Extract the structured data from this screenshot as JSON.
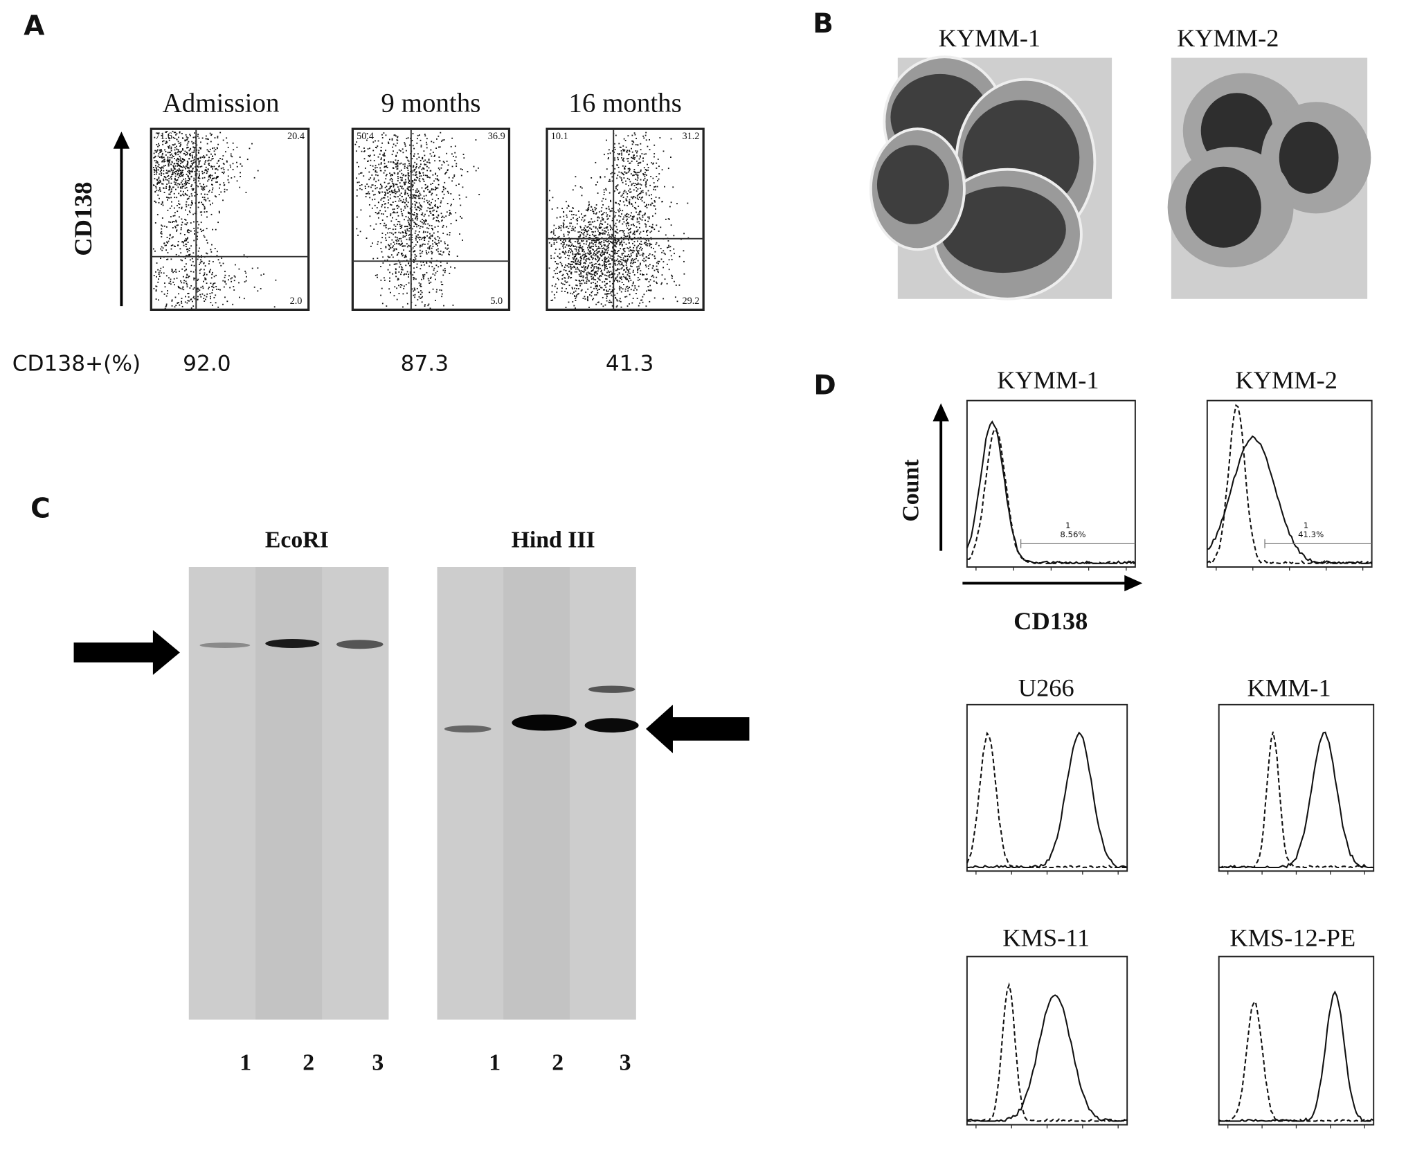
{
  "panel_a": {
    "label": "A",
    "y_axis_label": "CD138",
    "row_label": "CD138+(%)",
    "plots": [
      {
        "title": "Admission",
        "quadrants": [
          "71.6",
          "20.4",
          "2.0"
        ],
        "percent": "92.0"
      },
      {
        "title": "9 months",
        "quadrants": [
          "50.4",
          "36.9",
          "5.0"
        ],
        "percent": "87.3"
      },
      {
        "title": "16 months",
        "quadrants": [
          "10.1",
          "31.2",
          "29.2"
        ],
        "percent": "41.3"
      }
    ]
  },
  "panel_b": {
    "label": "B",
    "images": [
      "KYMM-1",
      "KYMM-2"
    ]
  },
  "panel_c": {
    "label": "C",
    "blots": [
      {
        "title": "EcoRI",
        "lanes": [
          "1",
          "2",
          "3"
        ]
      },
      {
        "title": "Hind III",
        "lanes": [
          "1",
          "2",
          "3"
        ]
      }
    ]
  },
  "panel_d": {
    "label": "D",
    "y_axis_label": "Count",
    "x_axis_label": "CD138",
    "plots": [
      {
        "title": "KYMM-1",
        "gate": "1",
        "gate_value": "8.56%"
      },
      {
        "title": "KYMM-2",
        "gate": "1",
        "gate_value": "41.3%"
      },
      {
        "title": "U266"
      },
      {
        "title": "KMM-1"
      },
      {
        "title": "KMS-11"
      },
      {
        "title": "KMS-12-PE"
      }
    ]
  }
}
